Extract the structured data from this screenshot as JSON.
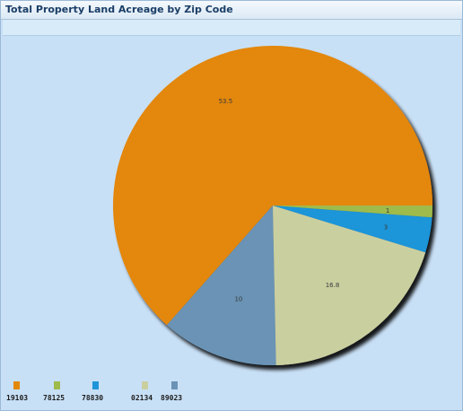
{
  "panel": {
    "title": "Total Property Land Acreage by Zip Code"
  },
  "colors": {
    "orange": "#e3870a",
    "green": "#9ebb4c",
    "blue": "#1f95d9",
    "beige": "#cacfa0",
    "steel": "#6a93b5"
  },
  "chart_data": {
    "type": "pie",
    "slices": [
      {
        "label": "53.5",
        "value": 53.5,
        "color": "#e3870a"
      },
      {
        "label": "10",
        "value": 10,
        "color": "#6a93b5"
      },
      {
        "label": "16.8",
        "value": 16.8,
        "color": "#cacfa0"
      },
      {
        "label": "3",
        "value": 3,
        "color": "#1f95d9"
      },
      {
        "label": "1",
        "value": 1,
        "color": "#9ebb4c"
      }
    ],
    "legend": [
      {
        "name": "19103",
        "color": "#e3870a"
      },
      {
        "name": "78125",
        "color": "#9ebb4c"
      },
      {
        "name": "78830",
        "color": "#1f95d9"
      },
      {
        "name": "02134",
        "color": "#cacfa0"
      },
      {
        "name": "89023",
        "color": "#6a93b5"
      }
    ],
    "legend_position": "bottom-left"
  }
}
